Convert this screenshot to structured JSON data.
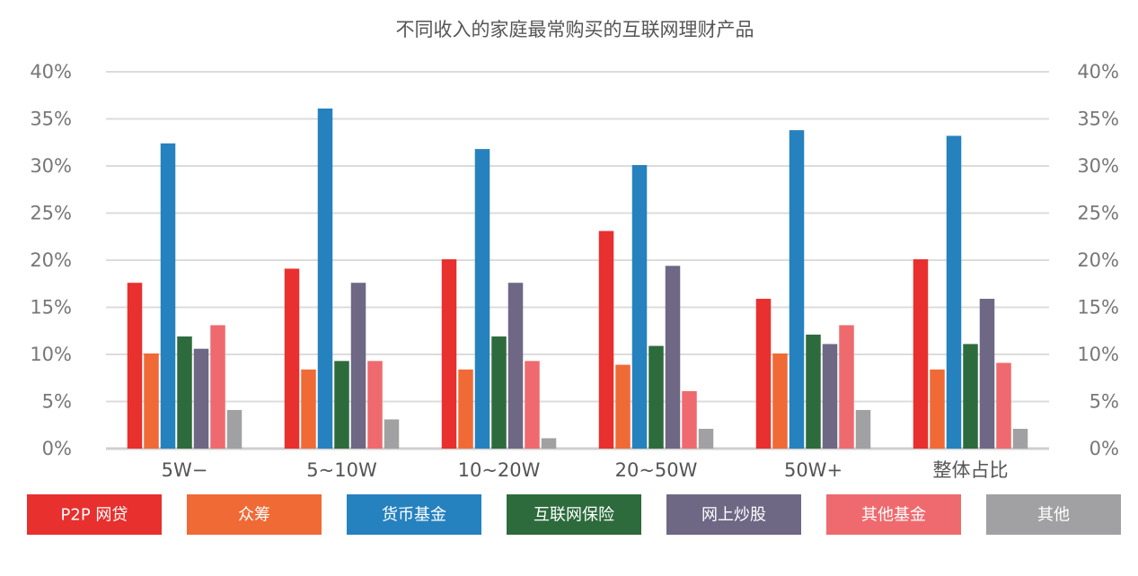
{
  "chart_data": {
    "type": "bar",
    "title": "不同收入的家庭最常购买的互联网理财产品",
    "categories": [
      "5W−",
      "5~10W",
      "10~20W",
      "20~50W",
      "50W+",
      "整体占比"
    ],
    "ylim": [
      0,
      40
    ],
    "yticks": [
      "0%",
      "5%",
      "10%",
      "15%",
      "20%",
      "25%",
      "30%",
      "35%",
      "40%"
    ],
    "grid": true,
    "dual_y_axis": true,
    "legend_position": "bottom",
    "series": [
      {
        "name": "P2P 网贷",
        "color": "#e8302e",
        "values": [
          17.6,
          19.1,
          20.1,
          23.1,
          15.9,
          20.1
        ]
      },
      {
        "name": "众筹",
        "color": "#f06a36",
        "values": [
          10.1,
          8.4,
          8.4,
          8.9,
          10.1,
          8.4
        ]
      },
      {
        "name": "货币基金",
        "color": "#2681bf",
        "values": [
          32.4,
          36.1,
          31.8,
          30.1,
          33.8,
          33.2
        ]
      },
      {
        "name": "互联网保险",
        "color": "#2d6b3c",
        "values": [
          11.9,
          9.3,
          11.9,
          10.9,
          12.1,
          11.1
        ]
      },
      {
        "name": "网上炒股",
        "color": "#6e6885",
        "values": [
          10.6,
          17.6,
          17.6,
          19.4,
          11.1,
          15.9
        ]
      },
      {
        "name": "其他基金",
        "color": "#ef6a6e",
        "values": [
          13.1,
          9.3,
          9.3,
          6.1,
          13.1,
          9.1
        ]
      },
      {
        "name": "其他",
        "color": "#a1a1a3",
        "values": [
          4.1,
          3.1,
          1.1,
          2.1,
          4.1,
          2.1
        ]
      }
    ]
  }
}
